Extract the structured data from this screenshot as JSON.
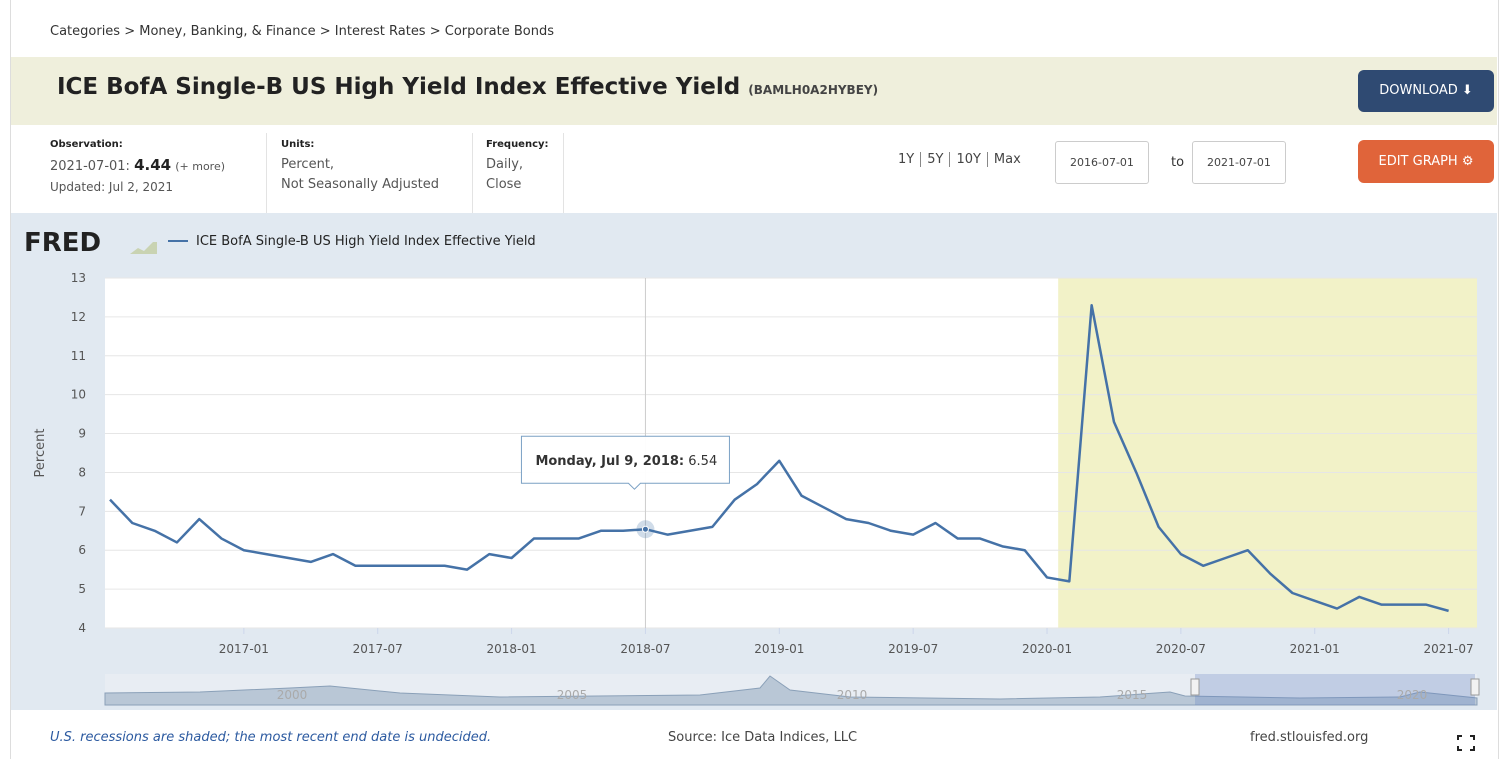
{
  "breadcrumb": "Categories > Money, Banking, & Finance > Interest Rates > Corporate Bonds",
  "header": {
    "title": "ICE BofA Single-B US High Yield Index Effective Yield",
    "series_id": "(BAMLH0A2HYBEY)",
    "download": "DOWNLOAD"
  },
  "info": {
    "observation": {
      "label": "Observation:",
      "date": "2021-07-01:",
      "value": 4.44,
      "more": "(+ more)",
      "updated": "Updated: Jul 2, 2021"
    },
    "units": {
      "label": "Units:",
      "lines": [
        "Percent,",
        "Not Seasonally Adjusted"
      ]
    },
    "frequency": {
      "label": "Frequency:",
      "lines": [
        "Daily,",
        "Close"
      ]
    },
    "ranges": [
      "1Y",
      "5Y",
      "10Y",
      "Max"
    ],
    "start": "2016-07-01",
    "to": "to",
    "end": "2021-07-01",
    "edit": "EDIT GRAPH"
  },
  "logo": "FRED",
  "chart_data": {
    "type": "line",
    "ylabel": "Percent",
    "x": [
      "2016-07",
      "2016-08",
      "2016-09",
      "2016-10",
      "2016-11",
      "2016-12",
      "2017-01",
      "2017-02",
      "2017-03",
      "2017-04",
      "2017-05",
      "2017-06",
      "2017-07",
      "2017-08",
      "2017-09",
      "2017-10",
      "2017-11",
      "2017-12",
      "2018-01",
      "2018-02",
      "2018-03",
      "2018-04",
      "2018-05",
      "2018-06",
      "2018-07",
      "2018-08",
      "2018-09",
      "2018-10",
      "2018-11",
      "2018-12",
      "2019-01",
      "2019-02",
      "2019-03",
      "2019-04",
      "2019-05",
      "2019-06",
      "2019-07",
      "2019-08",
      "2019-09",
      "2019-10",
      "2019-11",
      "2019-12",
      "2020-01",
      "2020-02",
      "2020-03",
      "2020-04",
      "2020-05",
      "2020-06",
      "2020-07",
      "2020-08",
      "2020-09",
      "2020-10",
      "2020-11",
      "2020-12",
      "2021-01",
      "2021-02",
      "2021-03",
      "2021-04",
      "2021-05",
      "2021-06",
      "2021-07"
    ],
    "series": [
      {
        "name": "ICE BofA Single-B US High Yield Index Effective Yield",
        "color": "#4572a7",
        "values": [
          7.3,
          6.7,
          6.5,
          6.2,
          6.8,
          6.3,
          6.0,
          5.9,
          5.8,
          5.7,
          5.9,
          5.6,
          5.6,
          5.6,
          5.6,
          5.6,
          5.5,
          5.9,
          5.8,
          6.3,
          6.3,
          6.3,
          6.5,
          6.5,
          6.54,
          6.4,
          6.5,
          6.6,
          7.3,
          7.7,
          8.3,
          7.4,
          7.1,
          6.8,
          6.7,
          6.5,
          6.4,
          6.7,
          6.3,
          6.3,
          6.1,
          6.0,
          5.3,
          5.2,
          12.3,
          9.3,
          8.0,
          6.6,
          5.9,
          5.6,
          5.8,
          6.0,
          5.4,
          4.9,
          4.7,
          4.5,
          4.8,
          4.6,
          4.6,
          4.6,
          4.44
        ]
      }
    ],
    "ylim": [
      4,
      13
    ],
    "yticks": [
      4,
      5,
      6,
      7,
      8,
      9,
      10,
      11,
      12,
      13
    ],
    "xticks": [
      "2017-01",
      "2017-07",
      "2018-01",
      "2018-07",
      "2019-01",
      "2019-07",
      "2020-01",
      "2020-07",
      "2021-01",
      "2021-07"
    ],
    "grid": true,
    "shaded": {
      "from": "2020-02",
      "to": "2021-07"
    },
    "tooltip": {
      "x": "2018-07",
      "label": "Monday, Jul 9, 2018:",
      "value": 6.54
    },
    "navigator_labels": [
      "2000",
      "2005",
      "2010",
      "2015",
      "2020"
    ]
  },
  "footer": {
    "note": "U.S. recessions are shaded; the most recent end date is undecided.",
    "source": "Source: Ice Data Indices, LLC",
    "site": "fred.stlouisfed.org"
  }
}
